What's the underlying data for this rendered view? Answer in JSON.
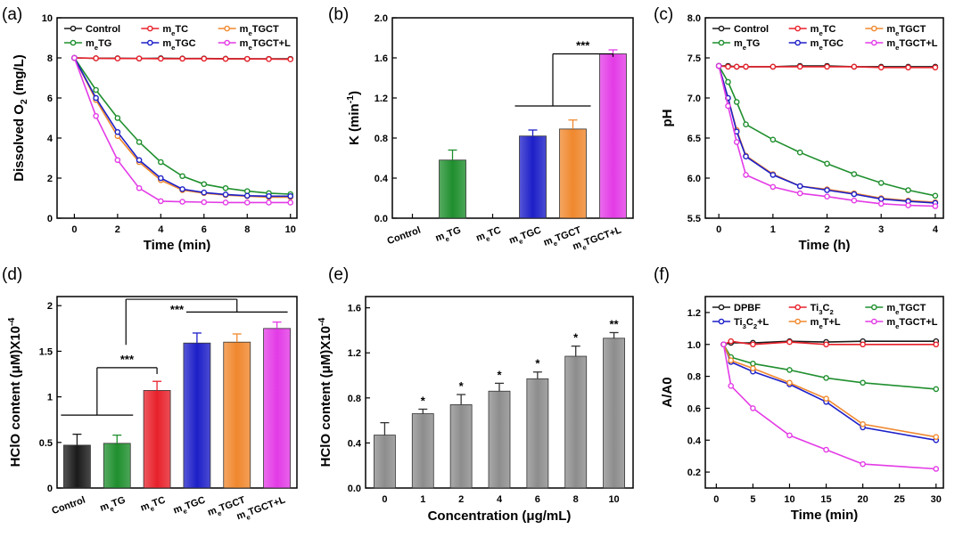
{
  "colors": {
    "black": "#1a1a1a",
    "red": "#e8212b",
    "orange": "#f0882e",
    "green": "#1f8f2e",
    "blue": "#1d1fc8",
    "magenta": "#e33be6",
    "gray": "#8d8d8d"
  },
  "chart_data": [
    {
      "panel": "(a)",
      "type": "line",
      "xlabel": "Time (min)",
      "ylabel": "Dissolved O2 (mg/L)",
      "xlim": [
        -0.8,
        10.3
      ],
      "ylim": [
        0,
        10
      ],
      "xticks": [
        0,
        2,
        4,
        6,
        8,
        10
      ],
      "yticks": [
        0,
        2,
        4,
        6,
        8,
        10
      ],
      "legend": "top",
      "legend_cols": 3,
      "x": [
        0,
        1,
        2,
        3,
        4,
        5,
        6,
        7,
        8,
        9,
        10
      ],
      "series": [
        {
          "name": "Control",
          "color": "black",
          "values": [
            8,
            7.98,
            7.98,
            7.97,
            7.98,
            7.97,
            7.97,
            7.96,
            7.95,
            7.95,
            7.95
          ]
        },
        {
          "name": "meTC",
          "color": "red",
          "values": [
            8,
            7.98,
            7.97,
            7.97,
            7.96,
            7.96,
            7.96,
            7.95,
            7.95,
            7.94,
            7.93
          ]
        },
        {
          "name": "meTGCT",
          "color": "orange",
          "values": [
            8,
            5.9,
            4.1,
            2.8,
            1.9,
            1.4,
            1.25,
            1.15,
            1.1,
            1.05,
            1.05
          ]
        },
        {
          "name": "meTG",
          "color": "green",
          "values": [
            8,
            6.4,
            5.0,
            3.8,
            2.8,
            2.1,
            1.7,
            1.5,
            1.35,
            1.25,
            1.2
          ]
        },
        {
          "name": "meTGC",
          "color": "blue",
          "values": [
            8,
            6.0,
            4.3,
            2.9,
            2.0,
            1.45,
            1.28,
            1.18,
            1.12,
            1.1,
            1.1
          ]
        },
        {
          "name": "meTGCT+L",
          "color": "magenta",
          "values": [
            8,
            5.1,
            2.9,
            1.5,
            0.85,
            0.82,
            0.8,
            0.78,
            0.78,
            0.78,
            0.78
          ]
        }
      ]
    },
    {
      "panel": "(b)",
      "type": "bar",
      "ylabel": "K (min-1)",
      "ylim": [
        0,
        2.0
      ],
      "yticks": [
        "0.0",
        "0.4",
        "0.8",
        "1.2",
        "1.6",
        "2.0"
      ],
      "categories": [
        "Control",
        "meTG",
        "meTC",
        "meTGC",
        "meTGCT",
        "meTGCT+L"
      ],
      "values": [
        0,
        0.58,
        0,
        0.82,
        0.89,
        1.64
      ],
      "errors": [
        0,
        0.1,
        0,
        0.06,
        0.09,
        0.04
      ],
      "colors": [
        "black",
        "green",
        "red",
        "blue",
        "orange",
        "magenta"
      ],
      "significance": "***"
    },
    {
      "panel": "(c)",
      "type": "line",
      "xlabel": "Time (h)",
      "ylabel": "pH",
      "xlim": [
        -0.25,
        4.15
      ],
      "ylim": [
        5.5,
        8.0
      ],
      "xticks": [
        0,
        1,
        2,
        3,
        4
      ],
      "yticks": [
        "5.5",
        "6.0",
        "6.5",
        "7.0",
        "7.5",
        "8.0"
      ],
      "legend": "top",
      "legend_cols": 3,
      "x": [
        0,
        0.17,
        0.33,
        0.5,
        1,
        1.5,
        2,
        2.5,
        3,
        3.5,
        4
      ],
      "series": [
        {
          "name": "Control",
          "color": "black",
          "values": [
            7.4,
            7.4,
            7.39,
            7.39,
            7.39,
            7.4,
            7.4,
            7.39,
            7.39,
            7.39,
            7.39
          ]
        },
        {
          "name": "meTC",
          "color": "red",
          "values": [
            7.4,
            7.39,
            7.39,
            7.39,
            7.39,
            7.39,
            7.39,
            7.39,
            7.38,
            7.38,
            7.38
          ]
        },
        {
          "name": "meTGCT",
          "color": "orange",
          "values": [
            7.4,
            7.0,
            6.6,
            6.28,
            6.05,
            5.9,
            5.86,
            5.81,
            5.75,
            5.72,
            5.7
          ]
        },
        {
          "name": "meTG",
          "color": "green",
          "values": [
            7.4,
            7.2,
            6.95,
            6.67,
            6.48,
            6.32,
            6.18,
            6.05,
            5.94,
            5.85,
            5.78
          ]
        },
        {
          "name": "meTGC",
          "color": "blue",
          "values": [
            7.4,
            7.0,
            6.58,
            6.27,
            6.04,
            5.9,
            5.85,
            5.8,
            5.74,
            5.71,
            5.69
          ]
        },
        {
          "name": "meTGCT+L",
          "color": "magenta",
          "values": [
            7.4,
            6.9,
            6.45,
            6.04,
            5.89,
            5.81,
            5.77,
            5.72,
            5.68,
            5.66,
            5.65
          ]
        }
      ]
    },
    {
      "panel": "(d)",
      "type": "bar",
      "ylabel": "HClO content (μM)X10-4",
      "ylim": [
        0,
        2.1
      ],
      "yticks": [
        "0",
        "0.5",
        "1",
        "1.5",
        "2"
      ],
      "categories": [
        "Control",
        "meTG",
        "meTC",
        "meTGC",
        "meTGCT",
        "meTGCT+L"
      ],
      "values": [
        0.47,
        0.49,
        1.07,
        1.59,
        1.6,
        1.75
      ],
      "errors": [
        0.12,
        0.09,
        0.1,
        0.11,
        0.09,
        0.07
      ],
      "colors": [
        "black",
        "green",
        "red",
        "blue",
        "orange",
        "magenta"
      ],
      "significance": [
        "***",
        "***"
      ]
    },
    {
      "panel": "(e)",
      "type": "bar",
      "xlabel": "Concentration (μg/mL)",
      "ylabel": "HClO content (μM)X10-4",
      "ylim": [
        0,
        1.7
      ],
      "yticks": [
        "0.0",
        "0.4",
        "0.8",
        "1.2",
        "1.6"
      ],
      "categories": [
        "0",
        "1",
        "2",
        "4",
        "6",
        "8",
        "10"
      ],
      "values": [
        0.47,
        0.66,
        0.74,
        0.86,
        0.97,
        1.17,
        1.33
      ],
      "errors": [
        0.11,
        0.04,
        0.09,
        0.07,
        0.06,
        0.09,
        0.05
      ],
      "significance": [
        "",
        "*",
        "*",
        "*",
        "*",
        "*",
        "**"
      ]
    },
    {
      "panel": "(f)",
      "type": "line",
      "xlabel": "Time (min)",
      "ylabel": "A/A0",
      "xlim": [
        -1.5,
        31
      ],
      "ylim": [
        0.1,
        1.3
      ],
      "xticks": [
        0,
        5,
        10,
        15,
        20,
        25,
        30
      ],
      "yticks": [
        "0.2",
        "0.4",
        "0.6",
        "0.8",
        "1.0",
        "1.2"
      ],
      "legend": "top",
      "legend_cols": 3,
      "x": [
        1,
        2,
        5,
        10,
        15,
        20,
        30
      ],
      "series": [
        {
          "name": "DPBF",
          "color": "black",
          "values": [
            1.0,
            1.01,
            1.01,
            1.02,
            1.015,
            1.02,
            1.02
          ]
        },
        {
          "name": "Ti3C2",
          "color": "red",
          "values": [
            1.0,
            1.02,
            1.0,
            1.015,
            1.0,
            1.0,
            1.0
          ]
        },
        {
          "name": "meTGCT",
          "color": "green",
          "values": [
            1.0,
            0.92,
            0.88,
            0.84,
            0.79,
            0.76,
            0.72
          ]
        },
        {
          "name": "Ti3C2+L",
          "color": "blue",
          "values": [
            1.0,
            0.89,
            0.83,
            0.75,
            0.64,
            0.48,
            0.4
          ]
        },
        {
          "name": "meT+L",
          "color": "orange",
          "values": [
            1.0,
            0.9,
            0.85,
            0.76,
            0.66,
            0.5,
            0.42
          ]
        },
        {
          "name": "meTGCT+L",
          "color": "magenta",
          "values": [
            1.0,
            0.74,
            0.6,
            0.43,
            0.34,
            0.25,
            0.22
          ]
        }
      ]
    }
  ]
}
